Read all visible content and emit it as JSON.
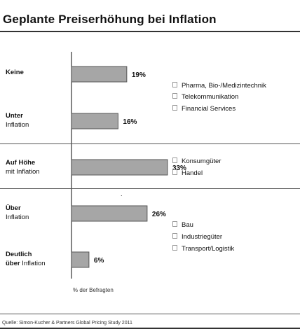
{
  "title": "Geplante Preiserhöhung bei Inflation",
  "chart_data": {
    "type": "bar",
    "orientation": "horizontal",
    "categories": [
      {
        "line1": "Keine",
        "line2": ""
      },
      {
        "line1": "Unter",
        "line2": "Inflation"
      },
      {
        "line1": "Auf Höhe",
        "line2": "mit Inflation"
      },
      {
        "line1": "Über",
        "line2": "Inflation"
      },
      {
        "line1": "Deutlich",
        "line2_bold": "über",
        "line2": " Inflation"
      }
    ],
    "values": [
      19,
      16,
      33,
      26,
      6
    ],
    "value_labels": [
      "19%",
      "16%",
      "33%",
      "26%",
      "6%"
    ],
    "unit": "%",
    "xlabel": "% der Befragten",
    "xlim": [
      0,
      100
    ],
    "grid": false,
    "legend": "none"
  },
  "industry_groups": [
    [
      "Pharma, Bio-/Medizintechnik",
      "Telekommunikation",
      "Financial Services"
    ],
    [
      "Konsumgüter",
      "Handel"
    ],
    [
      "Bau",
      "Industriegüter",
      "Transport/Logistik"
    ]
  ],
  "source": "Quelle: Simon-Kucher & Partners Global Pricing Study 2011",
  "colors": {
    "bar_fill": "#a6a6a6",
    "bar_stroke": "#555555",
    "text": "#111111"
  }
}
